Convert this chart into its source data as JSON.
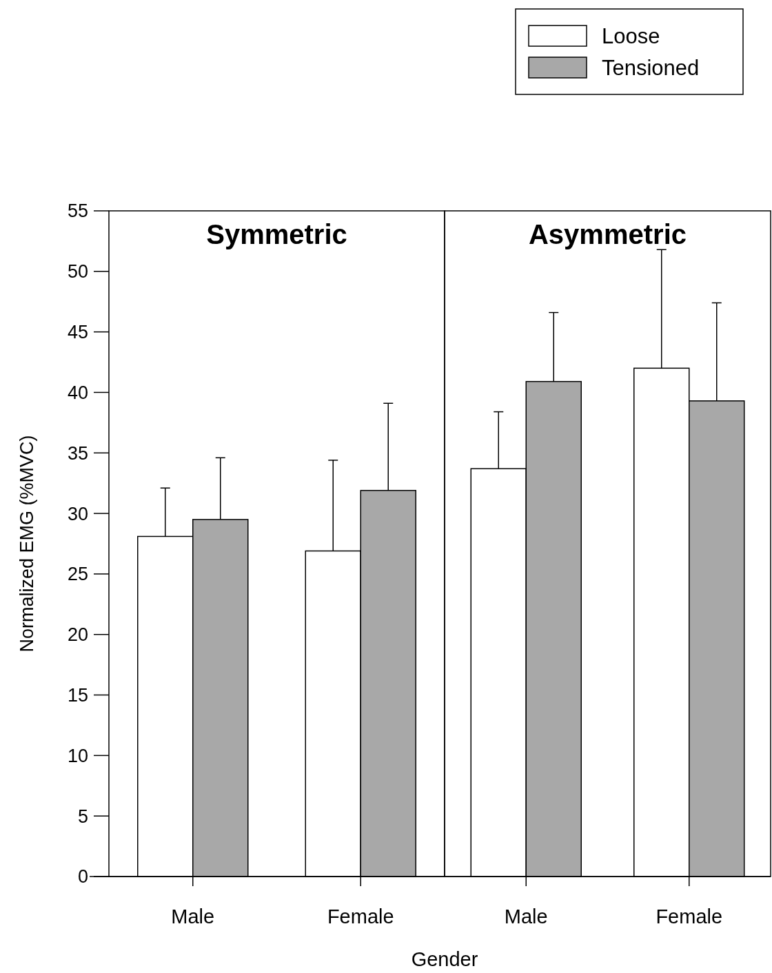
{
  "chart_data": [
    {
      "type": "bar",
      "title": "Symmetric",
      "ylabel": "Normalized EMG (%MVC)",
      "xlabel": "Gender",
      "categories": [
        "Male",
        "Female"
      ],
      "ylim": [
        0,
        55
      ],
      "yticks": [
        0,
        5,
        10,
        15,
        20,
        25,
        30,
        35,
        40,
        45,
        50,
        55
      ],
      "legend": "top right",
      "grid": false,
      "series": [
        {
          "name": "Loose",
          "color": "#ffffff",
          "values": [
            28.1,
            26.9
          ],
          "errors": [
            [
              28.1,
              32.1
            ],
            [
              26.9,
              34.4
            ]
          ]
        },
        {
          "name": "Tensioned",
          "color": "#a8a8a8",
          "values": [
            29.5,
            31.9
          ],
          "errors": [
            [
              29.5,
              34.6
            ],
            [
              31.9,
              39.1
            ]
          ]
        }
      ]
    },
    {
      "type": "bar",
      "title": "Asymmetric",
      "categories": [
        "Male",
        "Female"
      ],
      "ylim": [
        0,
        55
      ],
      "yticks": [
        0,
        5,
        10,
        15,
        20,
        25,
        30,
        35,
        40,
        45,
        50,
        55
      ],
      "tick_labels": "x",
      "grid": false,
      "series": [
        {
          "color": "#ffffff",
          "values": [
            33.7,
            42.0
          ],
          "errors": [
            [
              33.7,
              38.4
            ],
            [
              42.0,
              51.8
            ]
          ]
        },
        {
          "color": "#a8a8a8",
          "values": [
            40.9,
            39.3
          ],
          "errors": [
            [
              40.9,
              46.6
            ],
            [
              39.3,
              47.4
            ]
          ]
        }
      ]
    }
  ]
}
